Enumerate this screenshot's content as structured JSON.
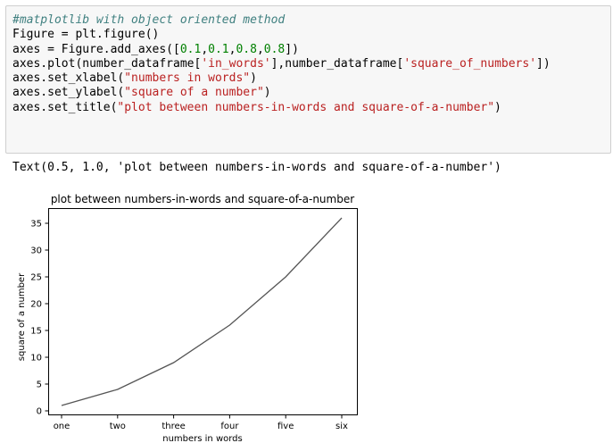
{
  "notebook": {
    "code_lines": [
      [
        {
          "t": "#matplotlib with object oriented method",
          "k": "comment"
        }
      ],
      [
        {
          "t": "Figure = plt.figure()"
        }
      ],
      [
        {
          "t": "axes = Figure.add_axes(["
        },
        {
          "t": "0.1",
          "k": "num"
        },
        {
          "t": ","
        },
        {
          "t": "0.1",
          "k": "num"
        },
        {
          "t": ","
        },
        {
          "t": "0.8",
          "k": "num"
        },
        {
          "t": ","
        },
        {
          "t": "0.8",
          "k": "num"
        },
        {
          "t": "])"
        }
      ],
      [
        {
          "t": "axes.plot(number_dataframe["
        },
        {
          "t": "'in_words'",
          "k": "str"
        },
        {
          "t": "],number_dataframe["
        },
        {
          "t": "'square_of_numbers'",
          "k": "str"
        },
        {
          "t": "])"
        }
      ],
      [
        {
          "t": "axes.set_xlabel("
        },
        {
          "t": "\"numbers in words\"",
          "k": "str"
        },
        {
          "t": ")"
        }
      ],
      [
        {
          "t": "axes.set_ylabel("
        },
        {
          "t": "\"square of a number\"",
          "k": "str"
        },
        {
          "t": ")"
        }
      ],
      [
        {
          "t": "axes.set_title("
        },
        {
          "t": "\"plot between numbers-in-words and square-of-a-number\"",
          "k": "str"
        },
        {
          "t": ")"
        }
      ]
    ],
    "output_text": "Text(0.5, 1.0, 'plot between numbers-in-words and square-of-a-number')"
  },
  "colors": {
    "line": "#555555",
    "comment": "#408080",
    "number": "#008000",
    "string": "#ba2121",
    "cell_bg": "#f7f7f7",
    "cell_border": "#cfcfcf"
  },
  "chart_data": {
    "type": "line",
    "title": "plot between numbers-in-words and square-of-a-number",
    "xlabel": "numbers in words",
    "ylabel": "square of a number",
    "categories": [
      "one",
      "two",
      "three",
      "four",
      "five",
      "six"
    ],
    "values": [
      1,
      4,
      9,
      16,
      25,
      36
    ],
    "ylim": [
      -0.75,
      37.75
    ],
    "yticks": [
      0,
      5,
      10,
      15,
      20,
      25,
      30,
      35
    ],
    "grid": false
  }
}
